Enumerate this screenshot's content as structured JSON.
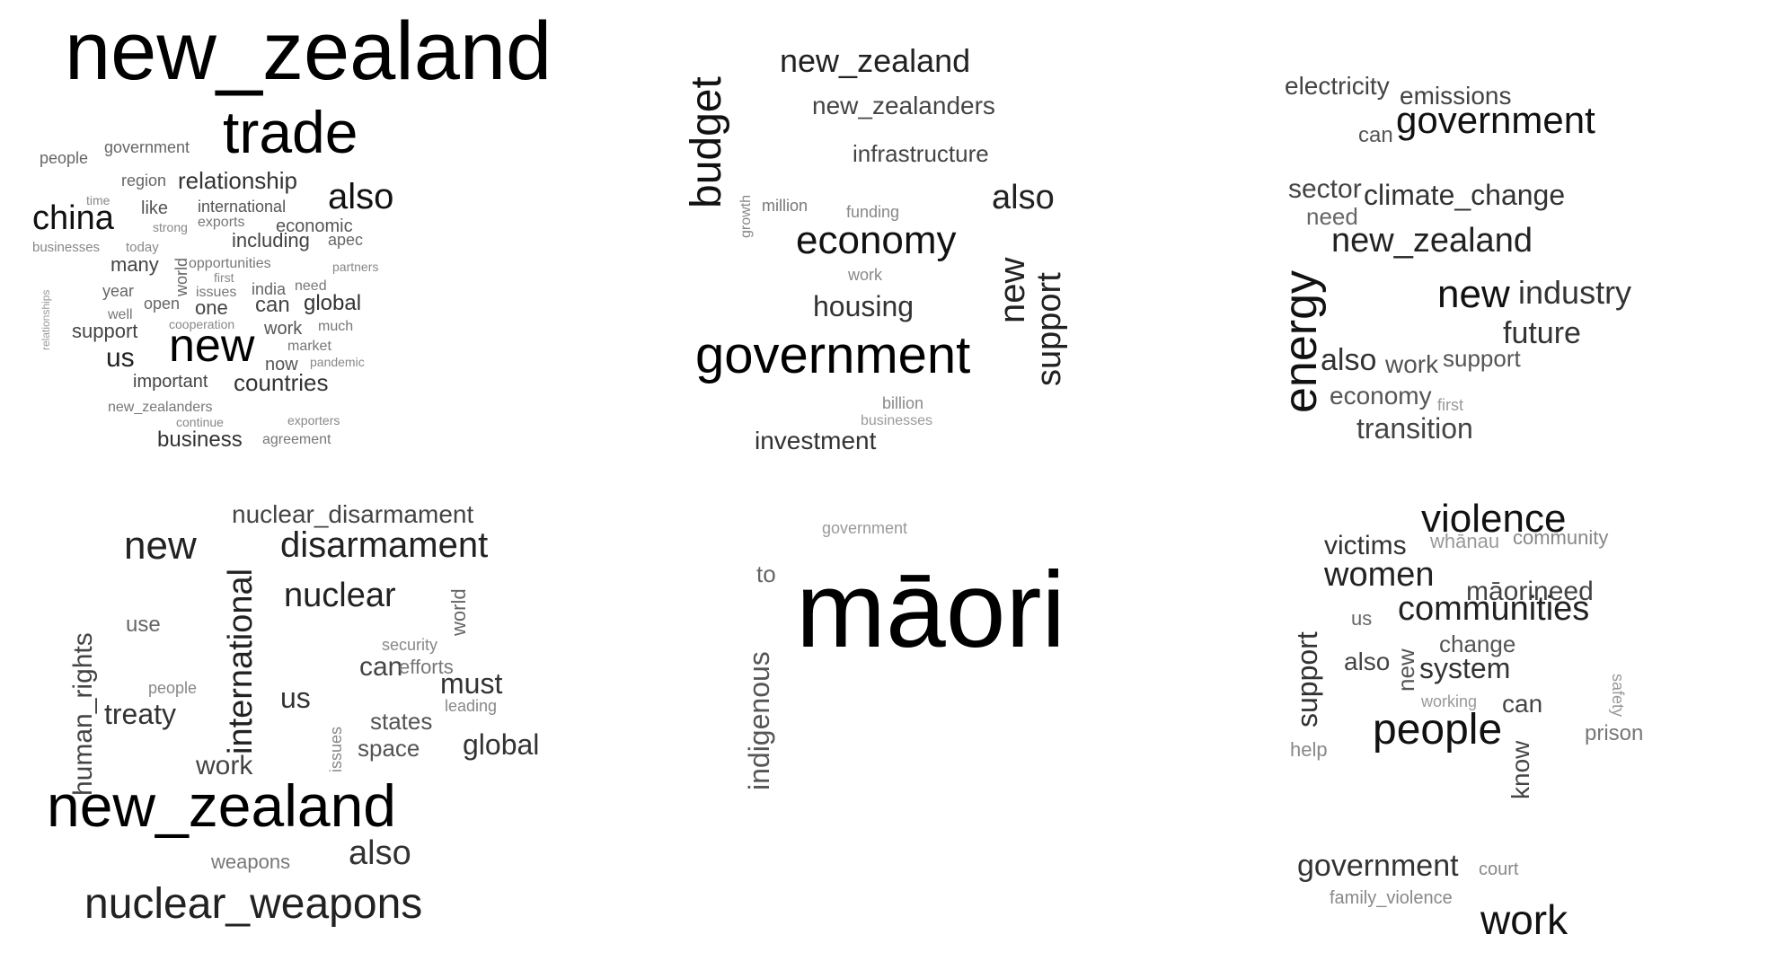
{
  "panels": [
    {
      "name": "wordcloud-trade",
      "words": [
        {
          "text": "new_zealand",
          "weight": 1.0
        },
        {
          "text": "trade",
          "weight": 0.82
        },
        {
          "text": "new",
          "weight": 0.78
        },
        {
          "text": "china",
          "weight": 0.6
        },
        {
          "text": "also",
          "weight": 0.62
        },
        {
          "text": "relationship",
          "weight": 0.42
        },
        {
          "text": "countries",
          "weight": 0.42
        },
        {
          "text": "us",
          "weight": 0.5
        },
        {
          "text": "business",
          "weight": 0.4
        },
        {
          "text": "global",
          "weight": 0.4
        },
        {
          "text": "including",
          "weight": 0.36
        },
        {
          "text": "international",
          "weight": 0.32
        },
        {
          "text": "economic",
          "weight": 0.32
        },
        {
          "text": "many",
          "weight": 0.36
        },
        {
          "text": "one",
          "weight": 0.36
        },
        {
          "text": "can",
          "weight": 0.4
        },
        {
          "text": "like",
          "weight": 0.3
        },
        {
          "text": "important",
          "weight": 0.32
        },
        {
          "text": "support",
          "weight": 0.36
        },
        {
          "text": "work",
          "weight": 0.3
        },
        {
          "text": "now",
          "weight": 0.3
        },
        {
          "text": "world",
          "weight": 0.3
        },
        {
          "text": "government",
          "weight": 0.28
        },
        {
          "text": "people",
          "weight": 0.28
        },
        {
          "text": "region",
          "weight": 0.28
        },
        {
          "text": "apec",
          "weight": 0.28
        },
        {
          "text": "exports",
          "weight": 0.26
        },
        {
          "text": "opportunities",
          "weight": 0.24
        },
        {
          "text": "india",
          "weight": 0.28
        },
        {
          "text": "need",
          "weight": 0.26
        },
        {
          "text": "issues",
          "weight": 0.26
        },
        {
          "text": "year",
          "weight": 0.28
        },
        {
          "text": "open",
          "weight": 0.28
        },
        {
          "text": "well",
          "weight": 0.26
        },
        {
          "text": "much",
          "weight": 0.26
        },
        {
          "text": "market",
          "weight": 0.26
        },
        {
          "text": "new_zealanders",
          "weight": 0.26
        },
        {
          "text": "agreement",
          "weight": 0.24
        },
        {
          "text": "pandemic",
          "weight": 0.24
        },
        {
          "text": "partners",
          "weight": 0.24
        },
        {
          "text": "cooperation",
          "weight": 0.24
        },
        {
          "text": "continue",
          "weight": 0.24
        },
        {
          "text": "exporters",
          "weight": 0.24
        },
        {
          "text": "businesses",
          "weight": 0.24
        },
        {
          "text": "today",
          "weight": 0.24
        },
        {
          "text": "strong",
          "weight": 0.24
        },
        {
          "text": "first",
          "weight": 0.24
        },
        {
          "text": "time",
          "weight": 0.24
        },
        {
          "text": "relationships",
          "weight": 0.2
        }
      ]
    },
    {
      "name": "wordcloud-budget",
      "words": [
        {
          "text": "government",
          "weight": 0.85
        },
        {
          "text": "economy",
          "weight": 0.65
        },
        {
          "text": "budget",
          "weight": 0.7
        },
        {
          "text": "new_zealand",
          "weight": 0.5
        },
        {
          "text": "also",
          "weight": 0.5
        },
        {
          "text": "new",
          "weight": 0.5
        },
        {
          "text": "support",
          "weight": 0.5
        },
        {
          "text": "housing",
          "weight": 0.45
        },
        {
          "text": "new_zealanders",
          "weight": 0.4
        },
        {
          "text": "infrastructure",
          "weight": 0.38
        },
        {
          "text": "investment",
          "weight": 0.38
        },
        {
          "text": "growth",
          "weight": 0.24
        },
        {
          "text": "million",
          "weight": 0.26
        },
        {
          "text": "funding",
          "weight": 0.26
        },
        {
          "text": "work",
          "weight": 0.26
        },
        {
          "text": "billion",
          "weight": 0.24
        },
        {
          "text": "businesses",
          "weight": 0.22
        }
      ]
    },
    {
      "name": "wordcloud-energy",
      "words": [
        {
          "text": "government",
          "weight": 0.62
        },
        {
          "text": "energy",
          "weight": 0.7
        },
        {
          "text": "new_zealand",
          "weight": 0.52
        },
        {
          "text": "new",
          "weight": 0.6
        },
        {
          "text": "climate_change",
          "weight": 0.46
        },
        {
          "text": "industry",
          "weight": 0.48
        },
        {
          "text": "future",
          "weight": 0.46
        },
        {
          "text": "also",
          "weight": 0.44
        },
        {
          "text": "electricity",
          "weight": 0.38
        },
        {
          "text": "emissions",
          "weight": 0.38
        },
        {
          "text": "sector",
          "weight": 0.4
        },
        {
          "text": "transition",
          "weight": 0.42
        },
        {
          "text": "economy",
          "weight": 0.38
        },
        {
          "text": "work",
          "weight": 0.38
        },
        {
          "text": "support",
          "weight": 0.36
        },
        {
          "text": "need",
          "weight": 0.36
        },
        {
          "text": "can",
          "weight": 0.34
        },
        {
          "text": "first",
          "weight": 0.24
        }
      ]
    },
    {
      "name": "wordcloud-nuclear",
      "words": [
        {
          "text": "new_zealand",
          "weight": 0.95
        },
        {
          "text": "nuclear_weapons",
          "weight": 0.7
        },
        {
          "text": "disarmament",
          "weight": 0.55
        },
        {
          "text": "international",
          "weight": 0.52
        },
        {
          "text": "new",
          "weight": 0.55
        },
        {
          "text": "nuclear",
          "weight": 0.52
        },
        {
          "text": "nuclear_disarmament",
          "weight": 0.38
        },
        {
          "text": "treaty",
          "weight": 0.46
        },
        {
          "text": "must",
          "weight": 0.45
        },
        {
          "text": "global",
          "weight": 0.45
        },
        {
          "text": "also",
          "weight": 0.5
        },
        {
          "text": "human_rights",
          "weight": 0.42
        },
        {
          "text": "work",
          "weight": 0.45
        },
        {
          "text": "us",
          "weight": 0.45
        },
        {
          "text": "can",
          "weight": 0.42
        },
        {
          "text": "states",
          "weight": 0.36
        },
        {
          "text": "space",
          "weight": 0.36
        },
        {
          "text": "world",
          "weight": 0.34
        },
        {
          "text": "efforts",
          "weight": 0.3
        },
        {
          "text": "security",
          "weight": 0.28
        },
        {
          "text": "use",
          "weight": 0.32
        },
        {
          "text": "people",
          "weight": 0.28
        },
        {
          "text": "weapons",
          "weight": 0.3
        },
        {
          "text": "leading",
          "weight": 0.28
        },
        {
          "text": "issues",
          "weight": 0.26
        }
      ]
    },
    {
      "name": "wordcloud-maori",
      "words": [
        {
          "text": "māori",
          "weight": 1.0
        },
        {
          "text": "indigenous",
          "weight": 0.45
        },
        {
          "text": "to",
          "weight": 0.4
        },
        {
          "text": "government",
          "weight": 0.24
        }
      ]
    },
    {
      "name": "wordcloud-violence",
      "words": [
        {
          "text": "violence",
          "weight": 0.65
        },
        {
          "text": "people",
          "weight": 0.7
        },
        {
          "text": "work",
          "weight": 0.65
        },
        {
          "text": "communities",
          "weight": 0.52
        },
        {
          "text": "women",
          "weight": 0.52
        },
        {
          "text": "government",
          "weight": 0.48
        },
        {
          "text": "victims",
          "weight": 0.42
        },
        {
          "text": "system",
          "weight": 0.46
        },
        {
          "text": "support",
          "weight": 0.45
        },
        {
          "text": "māorineed",
          "weight": 0.42
        },
        {
          "text": "community",
          "weight": 0.32
        },
        {
          "text": "whānau",
          "weight": 0.3
        },
        {
          "text": "change",
          "weight": 0.36
        },
        {
          "text": "also",
          "weight": 0.42
        },
        {
          "text": "new",
          "weight": 0.4
        },
        {
          "text": "know",
          "weight": 0.4
        },
        {
          "text": "can",
          "weight": 0.4
        },
        {
          "text": "us",
          "weight": 0.34
        },
        {
          "text": "prison",
          "weight": 0.32
        },
        {
          "text": "help",
          "weight": 0.3
        },
        {
          "text": "working",
          "weight": 0.3
        },
        {
          "text": "family_violence",
          "weight": 0.28
        },
        {
          "text": "court",
          "weight": 0.28
        },
        {
          "text": "safety",
          "weight": 0.24
        }
      ]
    }
  ]
}
